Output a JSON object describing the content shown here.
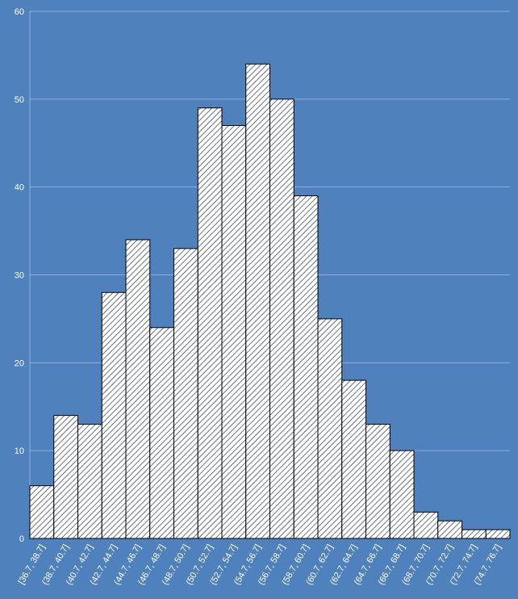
{
  "chart_data": {
    "type": "bar",
    "title": "",
    "xlabel": "",
    "ylabel": "",
    "ylim": [
      0,
      60
    ],
    "yticks": [
      0,
      10,
      20,
      30,
      40,
      50,
      60
    ],
    "grid": true,
    "legend": "none",
    "categories": [
      "[36.7, 38.7]",
      "(38.7, 40.7]",
      "(40.7, 42.7]",
      "(42.7, 44.7]",
      "(44.7, 46.7]",
      "(46.7, 48.7]",
      "(48.7, 50.7]",
      "(50.7, 52.7]",
      "(52.7, 54.7]",
      "(54.7, 56.7]",
      "(56.7, 58.7]",
      "(58.7, 60.7]",
      "(60.7, 62.7]",
      "(62.7, 64.7]",
      "(64.7, 66.7]",
      "(66.7, 68.7]",
      "(68.7, 70.7]",
      "(70.7, 72.7]",
      "(72.7, 74.7]",
      "(74.7, 76.7]"
    ],
    "values": [
      6,
      14,
      13,
      28,
      34,
      24,
      33,
      49,
      47,
      54,
      50,
      39,
      25,
      18,
      13,
      10,
      3,
      2,
      1,
      1
    ],
    "colors": {
      "background": "#4f81bd",
      "bar_fill": "#ffffff",
      "bar_hatch": "#1f2d3d",
      "bar_edge": "#000000",
      "grid": "#8fb0dc",
      "text": "#ffffff"
    },
    "bar_pattern": "diagonal-hatch"
  }
}
